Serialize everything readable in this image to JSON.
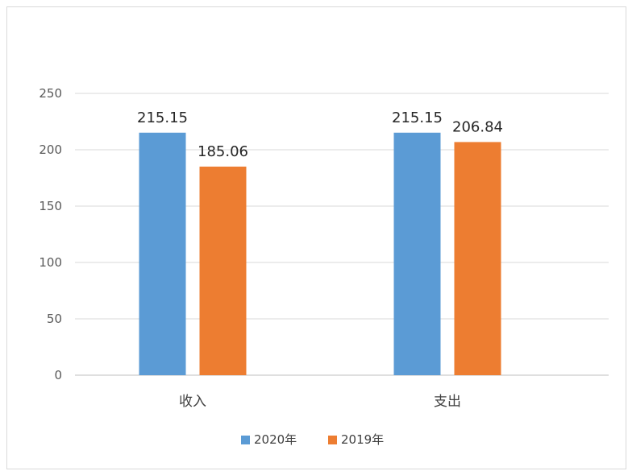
{
  "chart_data": {
    "type": "bar",
    "categories": [
      "收入",
      "支出"
    ],
    "series": [
      {
        "name": "2020年",
        "values": [
          215.15,
          215.15
        ],
        "color": "#5B9BD5"
      },
      {
        "name": "2019年",
        "values": [
          185.06,
          206.84
        ],
        "color": "#ED7D31"
      }
    ],
    "yticks": [
      "0",
      "50",
      "100",
      "150",
      "200",
      "250"
    ],
    "ylim": [
      0,
      250
    ],
    "grid": true,
    "legend": "bottom",
    "data_labels": [
      [
        "215.15",
        "215.15"
      ],
      [
        "185.06",
        "206.84"
      ]
    ]
  }
}
